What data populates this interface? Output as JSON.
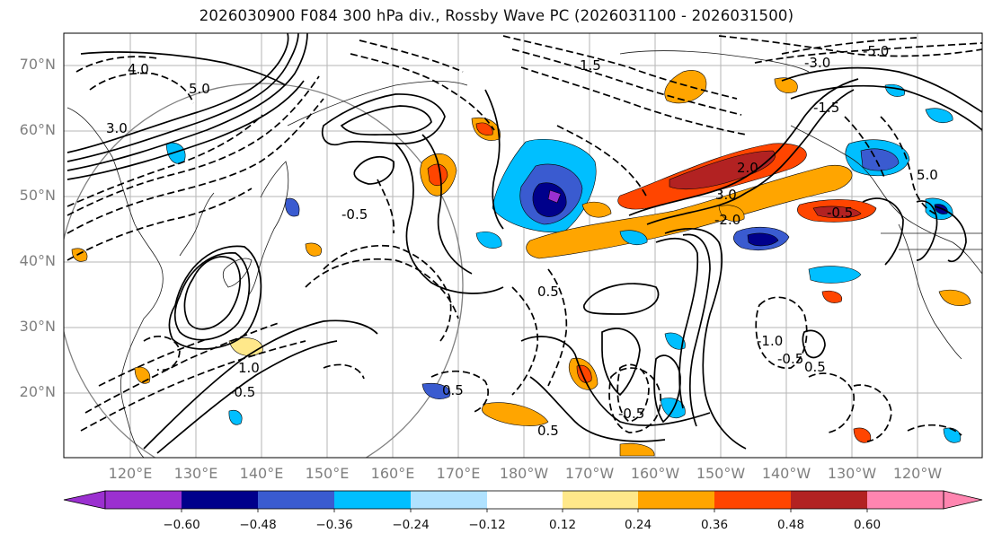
{
  "title": "2026030900 F084 300 hPa div., Rossby Wave PC (2026031100 - 2026031500)",
  "lat_labels": [
    "70°N",
    "60°N",
    "50°N",
    "40°N",
    "30°N",
    "20°N"
  ],
  "lon_labels": [
    "120°E",
    "130°E",
    "140°E",
    "150°E",
    "160°E",
    "170°E",
    "180°W",
    "170°W",
    "160°W",
    "150°W",
    "140°W",
    "130°W",
    "120°W"
  ],
  "colorbar": {
    "ticks": [
      "−0.60",
      "−0.48",
      "−0.36",
      "−0.24",
      "−0.12",
      "0.12",
      "0.24",
      "0.36",
      "0.48",
      "0.60"
    ],
    "colors": [
      "#9b30d0",
      "#00008b",
      "#3a5bd0",
      "#00bfff",
      "#b0e2ff",
      "#ffffff",
      "#ffe88a",
      "#ffa500",
      "#ff4500",
      "#b22222",
      "#ff85b0"
    ]
  },
  "contour_labels": [
    "4.0",
    "3.0",
    "5.0",
    "-0.5",
    "1.5",
    "0.5",
    "2.0",
    "-1.5",
    "-3.0",
    "-5.0",
    "1.0",
    "-1.0",
    "-2.0"
  ]
}
